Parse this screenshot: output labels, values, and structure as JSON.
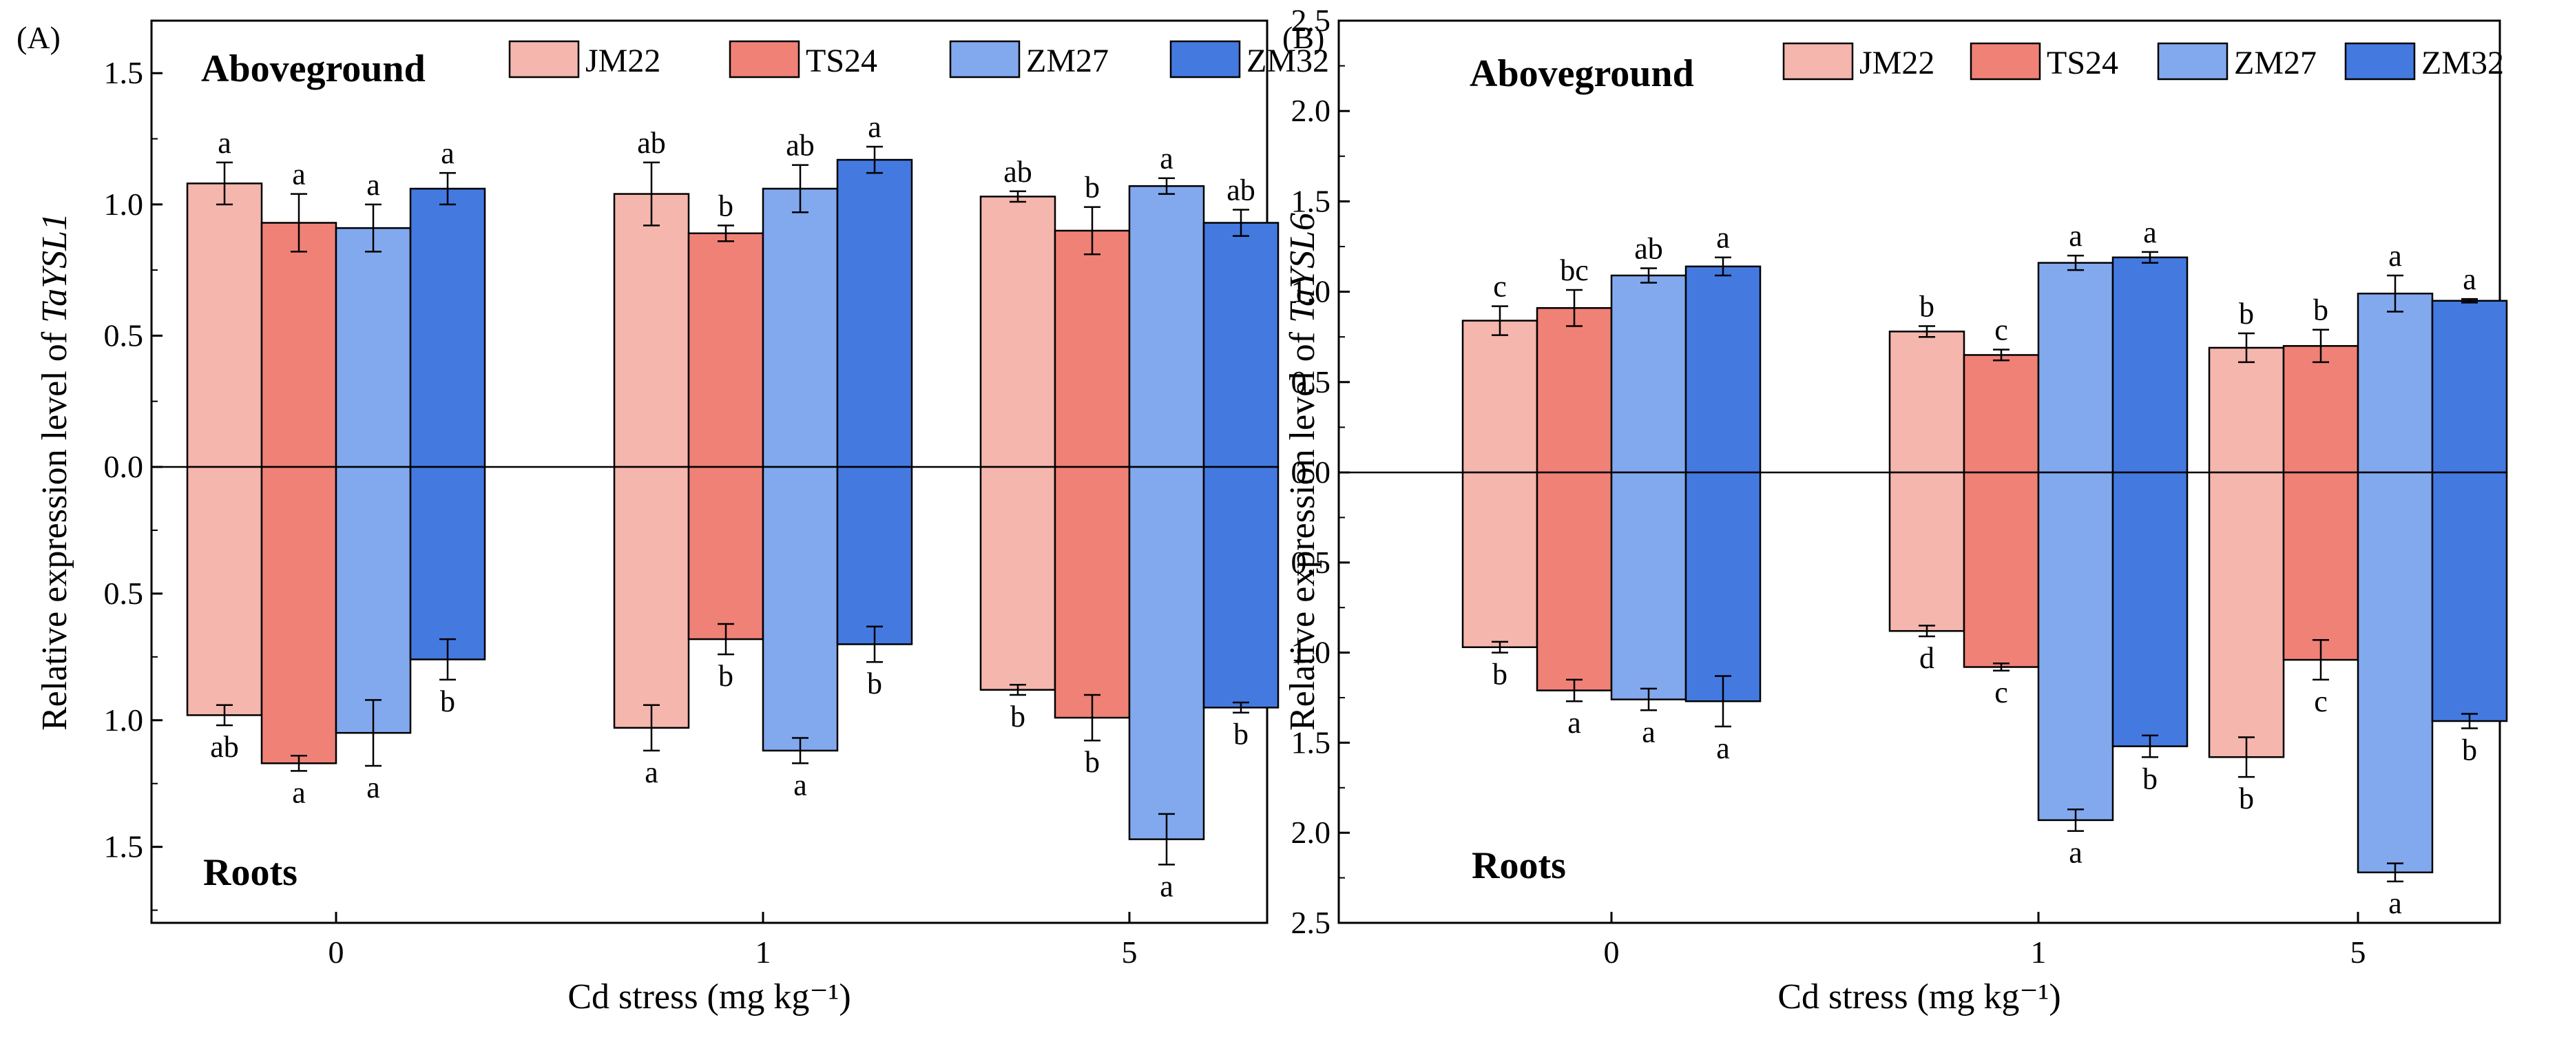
{
  "colors": {
    "JM22": "#f4b6ad",
    "TS24": "#f08177",
    "ZM27": "#82a9ee",
    "ZM32": "#4479e0"
  },
  "chart_data": [
    {
      "type": "bar",
      "panel": "(A)",
      "categories": [
        "0",
        "1",
        "5"
      ],
      "xlabel": "Cd stress (mg kg⁻¹)",
      "ylabel_prefix": "Relative expression level of ",
      "ylabel_gene": "TaYSL1",
      "ylim_top": 1.7,
      "ylim_bottom": 1.8,
      "ticks_top": [
        1.5,
        1.0,
        0.5,
        0.0
      ],
      "ticks_bottom": [
        0.5,
        1.0,
        1.5
      ],
      "tick_labels_top": [
        "1.5",
        "1.0",
        "0.5",
        "0.0"
      ],
      "tick_labels_bottom": [
        "0.5",
        "1.0",
        "1.5"
      ],
      "top_label": "Aboveground",
      "bottom_label": "Roots",
      "legend": [
        "JM22",
        "TS24",
        "ZM27",
        "ZM32"
      ],
      "aboveground": [
        {
          "name": "JM22",
          "values": [
            1.08,
            1.04,
            1.03
          ],
          "errors": [
            0.08,
            0.12,
            0.02
          ],
          "letters": [
            "a",
            "ab",
            "ab"
          ]
        },
        {
          "name": "TS24",
          "values": [
            0.93,
            0.89,
            0.9
          ],
          "errors": [
            0.11,
            0.03,
            0.09
          ],
          "letters": [
            "a",
            "b",
            "b"
          ]
        },
        {
          "name": "ZM27",
          "values": [
            0.91,
            1.06,
            1.07
          ],
          "errors": [
            0.09,
            0.09,
            0.03
          ],
          "letters": [
            "a",
            "ab",
            "a"
          ]
        },
        {
          "name": "ZM32",
          "values": [
            1.06,
            1.17,
            0.93
          ],
          "errors": [
            0.06,
            0.05,
            0.05
          ],
          "letters": [
            "a",
            "a",
            "ab"
          ]
        }
      ],
      "roots": [
        {
          "name": "JM22",
          "values": [
            0.98,
            1.03,
            0.88
          ],
          "errors": [
            0.04,
            0.09,
            0.02
          ],
          "letters": [
            "ab",
            "a",
            "b"
          ]
        },
        {
          "name": "TS24",
          "values": [
            1.17,
            0.68,
            0.99
          ],
          "errors": [
            0.03,
            0.06,
            0.09
          ],
          "letters": [
            "a",
            "b",
            "b"
          ]
        },
        {
          "name": "ZM27",
          "values": [
            1.05,
            1.12,
            1.47
          ],
          "errors": [
            0.13,
            0.05,
            0.1
          ],
          "letters": [
            "a",
            "a",
            "a"
          ]
        },
        {
          "name": "ZM32",
          "values": [
            0.76,
            0.7,
            0.95
          ],
          "errors": [
            0.08,
            0.07,
            0.02
          ],
          "letters": [
            "b",
            "b",
            "b"
          ]
        }
      ]
    },
    {
      "type": "bar",
      "panel": "(B)",
      "categories": [
        "0",
        "1",
        "5"
      ],
      "xlabel": "Cd stress (mg kg⁻¹)",
      "ylabel_prefix": "Relative expression level of ",
      "ylabel_gene": "TaYSL6",
      "ylim_top": 2.5,
      "ylim_bottom": 2.5,
      "ticks_top": [
        2.5,
        2.0,
        1.5,
        1.0,
        0.5,
        0.0
      ],
      "ticks_bottom": [
        0.5,
        1.0,
        1.5,
        2.0,
        2.5
      ],
      "tick_labels_top": [
        "2.5",
        "2.0",
        "1.5",
        "1.0",
        "0.5",
        "0.0"
      ],
      "tick_labels_bottom": [
        "0.5",
        "1.0",
        "1.5",
        "2.0",
        "2.5"
      ],
      "top_label": "Aboveground",
      "bottom_label": "Roots",
      "legend": [
        "JM22",
        "TS24",
        "ZM27",
        "ZM32"
      ],
      "aboveground": [
        {
          "name": "JM22",
          "values": [
            0.84,
            0.78,
            0.69
          ],
          "errors": [
            0.08,
            0.03,
            0.08
          ],
          "letters": [
            "c",
            "b",
            "b"
          ]
        },
        {
          "name": "TS24",
          "values": [
            0.91,
            0.65,
            0.7
          ],
          "errors": [
            0.1,
            0.03,
            0.09
          ],
          "letters": [
            "bc",
            "c",
            "b"
          ]
        },
        {
          "name": "ZM27",
          "values": [
            1.09,
            1.16,
            0.99
          ],
          "errors": [
            0.04,
            0.04,
            0.1
          ],
          "letters": [
            "ab",
            "a",
            "a"
          ]
        },
        {
          "name": "ZM32",
          "values": [
            1.14,
            1.19,
            0.95
          ],
          "errors": [
            0.05,
            0.03,
            0.01
          ],
          "letters": [
            "a",
            "a",
            "a"
          ]
        }
      ],
      "roots": [
        {
          "name": "JM22",
          "values": [
            0.97,
            0.88,
            1.58
          ],
          "errors": [
            0.03,
            0.03,
            0.11
          ],
          "letters": [
            "b",
            "d",
            "b"
          ]
        },
        {
          "name": "TS24",
          "values": [
            1.21,
            1.08,
            1.04
          ],
          "errors": [
            0.06,
            0.02,
            0.11
          ],
          "letters": [
            "a",
            "c",
            "c"
          ]
        },
        {
          "name": "ZM27",
          "values": [
            1.26,
            1.93,
            2.22
          ],
          "errors": [
            0.06,
            0.06,
            0.05
          ],
          "letters": [
            "a",
            "a",
            "a"
          ]
        },
        {
          "name": "ZM32",
          "values": [
            1.27,
            1.52,
            1.38
          ],
          "errors": [
            0.14,
            0.06,
            0.04
          ],
          "letters": [
            "a",
            "b",
            "b"
          ]
        }
      ]
    }
  ]
}
